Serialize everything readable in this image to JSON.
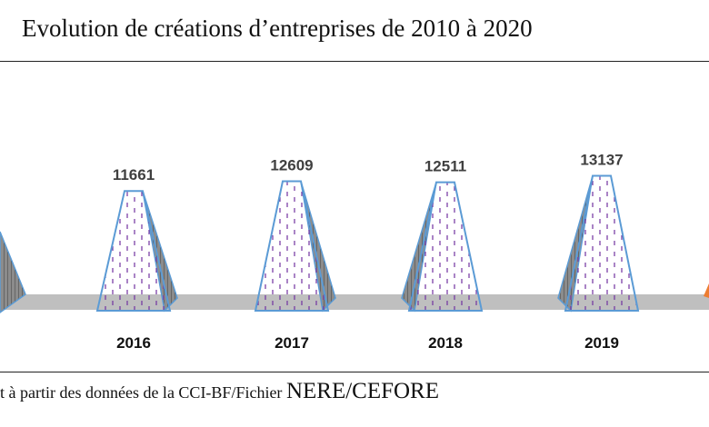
{
  "title": "Evolution de créations d’entreprises de 2010 à 2020",
  "source": {
    "prefix": "t à partir des données de la CCI-BF/Fichier ",
    "emph": "NERE/CEFORE"
  },
  "colors": {
    "outline": "#5b9bd5",
    "hatch": "#7030a0",
    "shade": "#595959",
    "floor": "#bfbfbf",
    "edge_accent": "#ed7d31"
  },
  "chart_data": {
    "type": "bar",
    "shape": "pyramid",
    "title": "Evolution de créations d’entreprises de 2010 à 2020",
    "categories": [
      "2016",
      "2017",
      "2018",
      "2019"
    ],
    "values": [
      11661,
      12609,
      12511,
      13137
    ],
    "ylim": [
      0,
      13500
    ],
    "grid": false,
    "legend": "none"
  }
}
